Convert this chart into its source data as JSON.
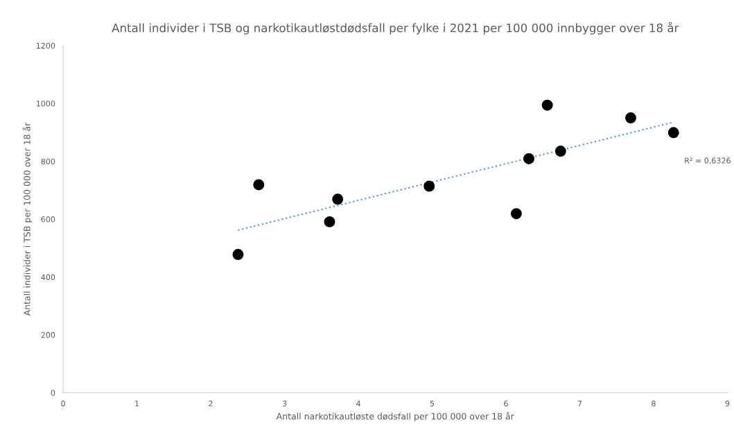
{
  "chart_data": {
    "type": "scatter",
    "title": "Antall individer i TSB og narkotikautløstdødsfall per fylke i 2021 per 100 000 innbygger over 18 år",
    "xlabel": "Antall narkotikautløste dødsfall per 100 000 over 18 år",
    "ylabel": "Antall individer i TSB per 100 000 over 18 år",
    "series": [
      {
        "color": "#000000",
        "marker": "circle",
        "x": [
          2.37,
          2.65,
          3.61,
          3.72,
          4.96,
          6.14,
          6.31,
          6.56,
          6.74,
          7.69,
          8.27
        ],
        "values": [
          478,
          719,
          591,
          669,
          714,
          619,
          809,
          994,
          835,
          950,
          899
        ]
      },
      {
        "type": "line",
        "color": "#5b9bd5",
        "line_style": "dotted",
        "x": [
          2.37,
          8.25
        ],
        "values": [
          562,
          934
        ]
      }
    ],
    "annotations": [
      "R² = 0,6326"
    ],
    "xlim": [
      0,
      9
    ],
    "xticks": [
      0,
      1,
      2,
      3,
      4,
      5,
      6,
      7,
      8,
      9
    ],
    "ylim": [
      0,
      1200
    ],
    "yticks": [
      0,
      200,
      400,
      600,
      800,
      1000,
      1200
    ],
    "grid": false
  }
}
